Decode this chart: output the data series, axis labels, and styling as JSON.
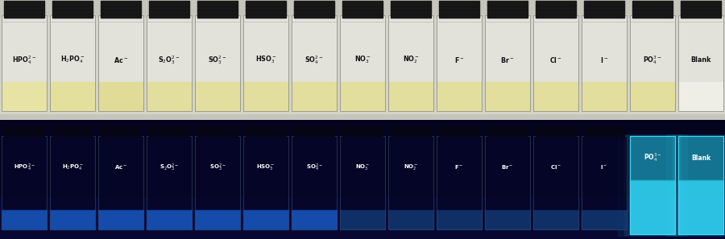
{
  "labels_top": [
    "HPO$_4^{2-}$",
    "H$_2$PO$_4^-$",
    "Ac$^-$",
    "S$_2$O$_3^{2-}$",
    "SO$_3^{2-}$",
    "HSO$_3^-$",
    "SO$_4^{2-}$",
    "NO$_3^-$",
    "NO$_2^-$",
    "F$^-$",
    "Br$^-$",
    "Cl$^-$",
    "I$^-$",
    "PO$_4^{3-}$",
    "Blank"
  ],
  "labels_bottom": [
    "HPO$_4^{2-}$",
    "H$_2$PO$_4^-$",
    "Ac$^-$",
    "S$_2$O$_3^{2-}$",
    "SO$_3^{2-}$",
    "HSO$_3^-$",
    "SO$_4^{2-}$",
    "NO$_3^-$",
    "NO$_2^-$",
    "F$^-$",
    "Br$^-$",
    "Cl$^-$",
    "I$^-$",
    "PO$_4^{3-}$",
    "Blank"
  ],
  "n_vials": 15,
  "top_bg": "#c8c8c0",
  "top_wall_bg": "#d0d0c8",
  "bottom_bg": "#04041e",
  "top_vial_glass": "#e8e8e0",
  "top_vial_liquid": [
    "#e8e4a0",
    "#e4e098",
    "#e0dc90",
    "#e2de98",
    "#e2de98",
    "#e2de98",
    "#e2de98",
    "#e2de98",
    "#e2de98",
    "#e2de98",
    "#e2de98",
    "#e2de98",
    "#e2de98",
    "#e2de98",
    "#f0f0e8"
  ],
  "cap_color": "#141414",
  "top_label_color": "#111111",
  "bottom_label_color": "#ffffff",
  "bottom_vial_glow": [
    "#1848a8",
    "#1040a0",
    "#1040a0",
    "#1040a0",
    "#0c3090",
    "#0c3090",
    "#1038888",
    "#0828708",
    "#082870",
    "#102878",
    "#102878",
    "#102878",
    "#102878",
    "#30b8d8",
    "#30b8d8"
  ],
  "bottom_vial_dim": [
    "#0a1850",
    "#081448",
    "#081448",
    "#081448",
    "#061040",
    "#061040",
    "#081440",
    "#040c30",
    "#040c30",
    "#080c30",
    "#080c30",
    "#080c30",
    "#080c30",
    "#20a0c8",
    "#20a0c8"
  ],
  "bright_cyan": "#30d0f0",
  "fig_width": 9.0,
  "fig_height": 2.97
}
